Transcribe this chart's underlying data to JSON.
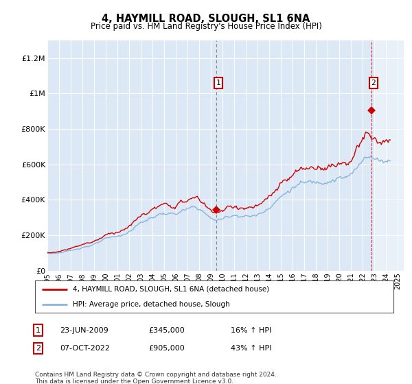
{
  "title": "4, HAYMILL ROAD, SLOUGH, SL1 6NA",
  "subtitle": "Price paid vs. HM Land Registry's House Price Index (HPI)",
  "ylabel_ticks": [
    "£0",
    "£200K",
    "£400K",
    "£600K",
    "£800K",
    "£1M",
    "£1.2M"
  ],
  "ylim": [
    0,
    1300000
  ],
  "yticks": [
    0,
    200000,
    400000,
    600000,
    800000,
    1000000,
    1200000
  ],
  "hpi_color": "#8ab4d8",
  "price_color": "#cc0000",
  "bg_color": "#dce8f5",
  "hatch_color": "#c8d8e8",
  "purchase_1": {
    "year": 2009.47,
    "price": 345000,
    "hpi_pct": "16% ↑ HPI",
    "label": "1"
  },
  "purchase_2": {
    "year": 2022.75,
    "price": 905000,
    "hpi_pct": "43% ↑ HPI",
    "label": "2"
  },
  "purchase_1_date": "23-JUN-2009",
  "purchase_2_date": "07-OCT-2022",
  "purchase_1_price_str": "£345,000",
  "purchase_2_price_str": "£905,000",
  "legend_line1": "4, HAYMILL ROAD, SLOUGH, SL1 6NA (detached house)",
  "legend_line2": "HPI: Average price, detached house, Slough",
  "footnote": "Contains HM Land Registry data © Crown copyright and database right 2024.\nThis data is licensed under the Open Government Licence v3.0.",
  "xlim_left": 1995.0,
  "xlim_right": 2025.5
}
